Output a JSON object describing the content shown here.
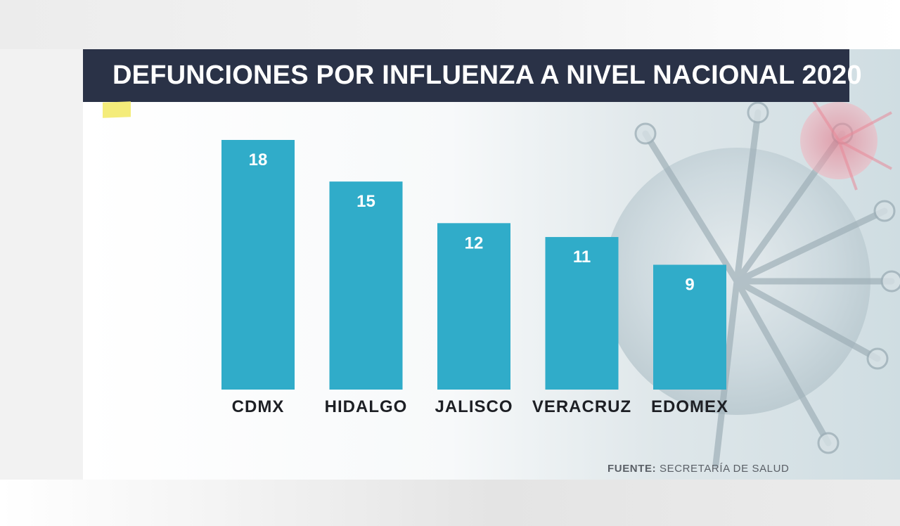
{
  "chart_data": {
    "type": "bar",
    "title": "DEFUNCIONES POR INFLUENZA A NIVEL NACIONAL 2020",
    "categories": [
      "CDMX",
      "HIDALGO",
      "JALISCO",
      "VERACRUZ",
      "EDOMEX"
    ],
    "values": [
      18,
      15,
      12,
      11,
      9
    ],
    "ylim": [
      0,
      18
    ],
    "grid": false,
    "bar_color": "#30acc9",
    "label_color": "#ffffff",
    "category_label_color": "#1d1f24"
  },
  "source": {
    "label": "FUENTE:",
    "text": "SECRETARÍA DE SALUD"
  },
  "colors": {
    "title_bar": "#2a3247",
    "accent": "#f4ec7a"
  }
}
